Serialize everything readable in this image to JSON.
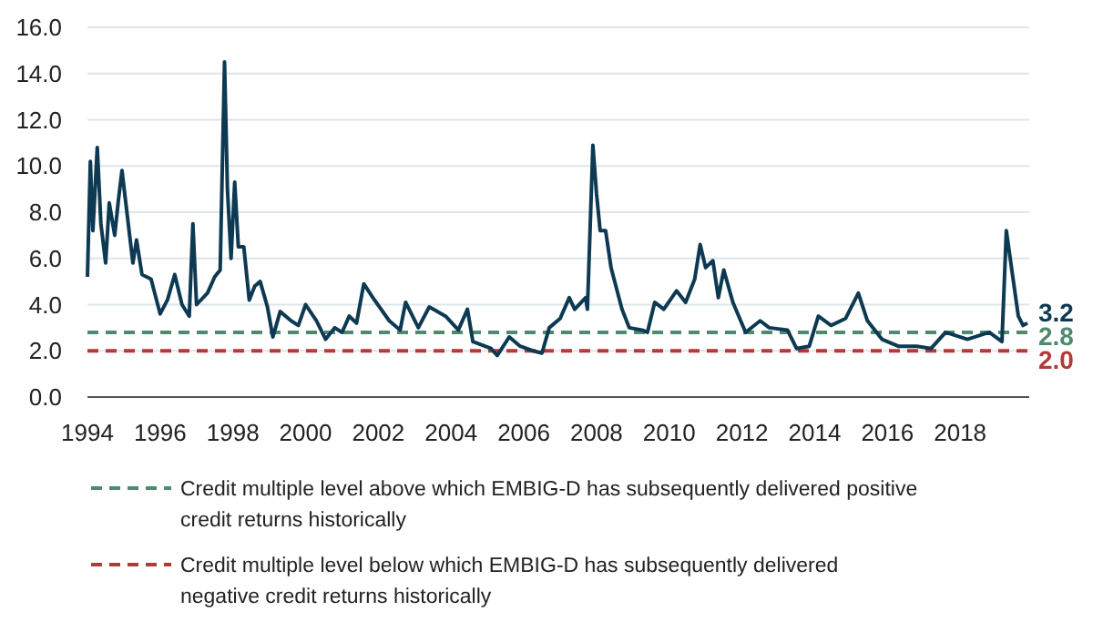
{
  "chart_data": {
    "type": "line",
    "x": [
      1994.0,
      1994.08,
      1994.15,
      1994.27,
      1994.37,
      1994.5,
      1994.6,
      1994.75,
      1994.85,
      1994.95,
      1995.1,
      1995.25,
      1995.35,
      1995.5,
      1995.75,
      1996.0,
      1996.2,
      1996.4,
      1996.6,
      1996.8,
      1996.9,
      1997.0,
      1997.3,
      1997.5,
      1997.65,
      1997.77,
      1997.85,
      1997.95,
      1998.05,
      1998.15,
      1998.3,
      1998.45,
      1998.6,
      1998.75,
      1998.95,
      1999.1,
      1999.3,
      1999.6,
      1999.8,
      2000.0,
      2000.3,
      2000.55,
      2000.8,
      2001.0,
      2001.2,
      2001.4,
      2001.6,
      2001.85,
      2002.3,
      2002.6,
      2002.75,
      2003.1,
      2003.4,
      2003.85,
      2004.2,
      2004.45,
      2004.6,
      2005.1,
      2005.27,
      2005.6,
      2005.9,
      2006.25,
      2006.5,
      2006.7,
      2007.0,
      2007.25,
      2007.4,
      2007.7,
      2007.75,
      2007.9,
      2008.0,
      2008.1,
      2008.25,
      2008.4,
      2008.7,
      2008.9,
      2009.25,
      2009.4,
      2009.6,
      2009.85,
      2010.2,
      2010.45,
      2010.7,
      2010.85,
      2011.0,
      2011.2,
      2011.35,
      2011.5,
      2011.75,
      2012.1,
      2012.5,
      2012.75,
      2013.25,
      2013.5,
      2013.85,
      2014.1,
      2014.45,
      2014.85,
      2015.2,
      2015.45,
      2015.85,
      2016.3,
      2016.8,
      2017.2,
      2017.6,
      2018.2,
      2018.8,
      2019.15,
      2019.27,
      2019.43,
      2019.6,
      2019.73,
      2019.85
    ],
    "series": [
      {
        "color": "#0d3a52",
        "values": [
          5.2,
          10.2,
          7.2,
          10.8,
          7.5,
          5.8,
          8.4,
          7.0,
          8.5,
          9.8,
          7.8,
          5.8,
          6.8,
          5.3,
          5.1,
          3.6,
          4.2,
          5.3,
          4.0,
          3.5,
          7.5,
          4.0,
          4.5,
          5.2,
          5.5,
          14.5,
          9.0,
          6.0,
          9.3,
          6.5,
          6.5,
          4.2,
          4.8,
          5.0,
          3.9,
          2.6,
          3.7,
          3.3,
          3.1,
          4.0,
          3.3,
          2.5,
          3.0,
          2.8,
          3.5,
          3.2,
          4.9,
          4.3,
          3.3,
          2.9,
          4.1,
          3.0,
          3.9,
          3.5,
          2.9,
          3.8,
          2.4,
          2.1,
          1.8,
          2.6,
          2.2,
          2.0,
          1.9,
          3.0,
          3.4,
          4.3,
          3.8,
          4.3,
          3.8,
          10.9,
          8.8,
          7.2,
          7.2,
          5.6,
          3.8,
          3.0,
          2.9,
          2.8,
          4.1,
          3.8,
          4.6,
          4.1,
          5.1,
          6.6,
          5.6,
          5.9,
          4.3,
          5.5,
          4.1,
          2.8,
          3.3,
          3.0,
          2.9,
          2.1,
          2.2,
          3.5,
          3.1,
          3.4,
          4.5,
          3.3,
          2.5,
          2.2,
          2.2,
          2.1,
          2.8,
          2.5,
          2.8,
          2.4,
          7.2,
          5.4,
          3.5,
          3.1,
          3.2
        ]
      }
    ],
    "xlim": [
      1994,
      2019.9
    ],
    "xticks": [
      1994,
      1996,
      1998,
      2000,
      2002,
      2004,
      2006,
      2008,
      2010,
      2012,
      2014,
      2016,
      2018
    ],
    "ylim": [
      0,
      16
    ],
    "yticks": [
      {
        "value": 0,
        "label": "0.0"
      },
      {
        "value": 2,
        "label": "2.0"
      },
      {
        "value": 4,
        "label": "4.0"
      },
      {
        "value": 6,
        "label": "6.0"
      },
      {
        "value": 8,
        "label": "8.0"
      },
      {
        "value": 10,
        "label": "10.0"
      },
      {
        "value": 12,
        "label": "12.0"
      },
      {
        "value": 14,
        "label": "14.0"
      },
      {
        "value": 16,
        "label": "16.0"
      }
    ],
    "grid": "y",
    "line_style": "solid",
    "ref_lines": [
      {
        "axis": "y",
        "value": 2.8,
        "label": "Credit multiple level above which EMBIG-D has subsequently delivered positive\ncredit returns historically",
        "color": "#4f8a6e",
        "line_style": "dashed"
      },
      {
        "axis": "y",
        "value": 2.0,
        "label": "Credit multiple level below which EMBIG-D has subsequently delivered\nnegative credit returns historically",
        "color": "#b23a3a",
        "line_style": "dashed"
      }
    ],
    "annotations": [
      "3.2",
      "2.8",
      "2.0"
    ],
    "legend": "bottom"
  }
}
